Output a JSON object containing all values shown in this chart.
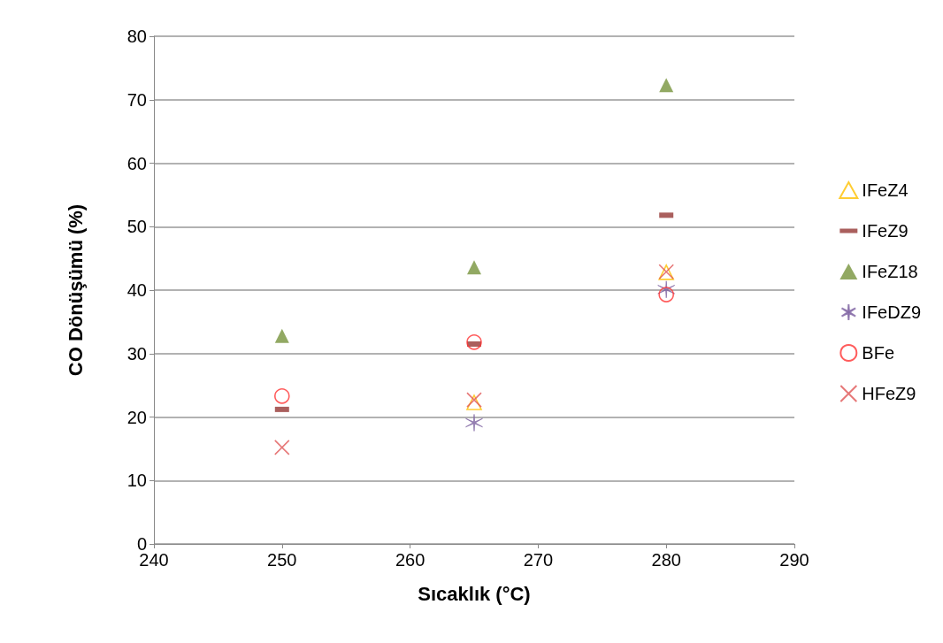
{
  "chart_data": {
    "type": "scatter",
    "xlabel": "Sıcaklık (°C)",
    "ylabel": "CO Dönüşümü (%)",
    "xlim": [
      240,
      290
    ],
    "xticks": [
      240,
      250,
      260,
      270,
      280,
      290
    ],
    "ylim": [
      0,
      80
    ],
    "yticks": [
      0,
      10,
      20,
      30,
      40,
      50,
      60,
      70,
      80
    ],
    "grid": "y",
    "legend": "right",
    "series": [
      {
        "name": "IFeZ4",
        "color": "#ffc000",
        "marker": "triangle-open",
        "x": [
          265,
          280
        ],
        "values": [
          22.3,
          42.8
        ]
      },
      {
        "name": "IFeZ9",
        "color": "#953735",
        "marker": "square",
        "x": [
          250,
          265,
          280
        ],
        "values": [
          21.2,
          31.5,
          51.8
        ]
      },
      {
        "name": "IFeZ18",
        "color": "#77933c",
        "marker": "triangle",
        "x": [
          250,
          265,
          280
        ],
        "values": [
          32.8,
          43.6,
          72.3
        ]
      },
      {
        "name": "IFeDZ9",
        "color": "#8064a2",
        "x": [
          265,
          280
        ],
        "values": [
          19.1,
          40.1
        ]
      },
      {
        "name": "BFe",
        "color": "#ff3333",
        "marker": "circle-open",
        "x": [
          250,
          265,
          280
        ],
        "values": [
          23.3,
          31.8,
          39.3
        ]
      },
      {
        "name": "HFeZ9",
        "color": "#e05555",
        "marker": "cross",
        "x": [
          250,
          265,
          280
        ],
        "values": [
          15.2,
          22.7,
          42.9
        ]
      }
    ]
  }
}
